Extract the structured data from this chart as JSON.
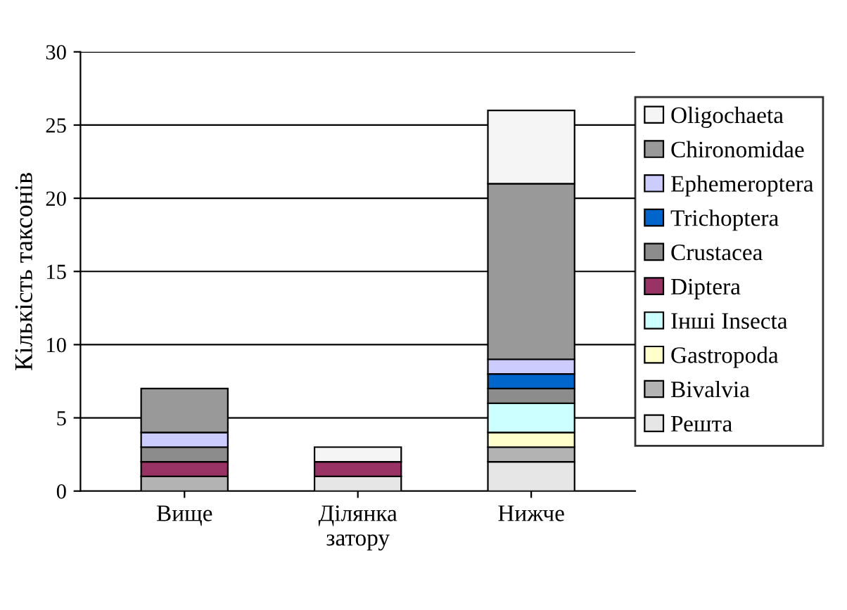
{
  "chart_data": {
    "type": "bar",
    "stacked": true,
    "ylabel": "Кількість таксонів",
    "categories": [
      "Вище",
      "Ділянка\nзатору",
      "Нижче"
    ],
    "ylim": [
      0,
      30
    ],
    "yticks": [
      0,
      5,
      10,
      15,
      20,
      25,
      30
    ],
    "grid": "y",
    "legend": "right",
    "series": [
      {
        "name": "Решта",
        "color": "#e6e6e6",
        "values": [
          0,
          1,
          2
        ]
      },
      {
        "name": "Bivalvia",
        "color": "#b3b3b3",
        "values": [
          1,
          0,
          1
        ]
      },
      {
        "name": "Gastropoda",
        "color": "#ffffcc",
        "values": [
          0,
          0,
          1
        ]
      },
      {
        "name": "Інші Insecta",
        "color": "#ccffff",
        "values": [
          0,
          0,
          2
        ]
      },
      {
        "name": "Diptera",
        "color": "#993366",
        "values": [
          1,
          1,
          0
        ]
      },
      {
        "name": "Crustacea",
        "color": "#8c8c8c",
        "values": [
          1,
          0,
          1
        ]
      },
      {
        "name": "Trichoptera",
        "color": "#0066cc",
        "values": [
          0,
          0,
          1
        ]
      },
      {
        "name": "Ephemeroptera",
        "color": "#ccccff",
        "values": [
          1,
          0,
          1
        ]
      },
      {
        "name": "Chironomidae",
        "color": "#999999",
        "values": [
          3,
          0,
          12
        ]
      },
      {
        "name": "Oligochaeta",
        "color": "#f5f5f5",
        "values": [
          0,
          1,
          5
        ]
      }
    ]
  }
}
